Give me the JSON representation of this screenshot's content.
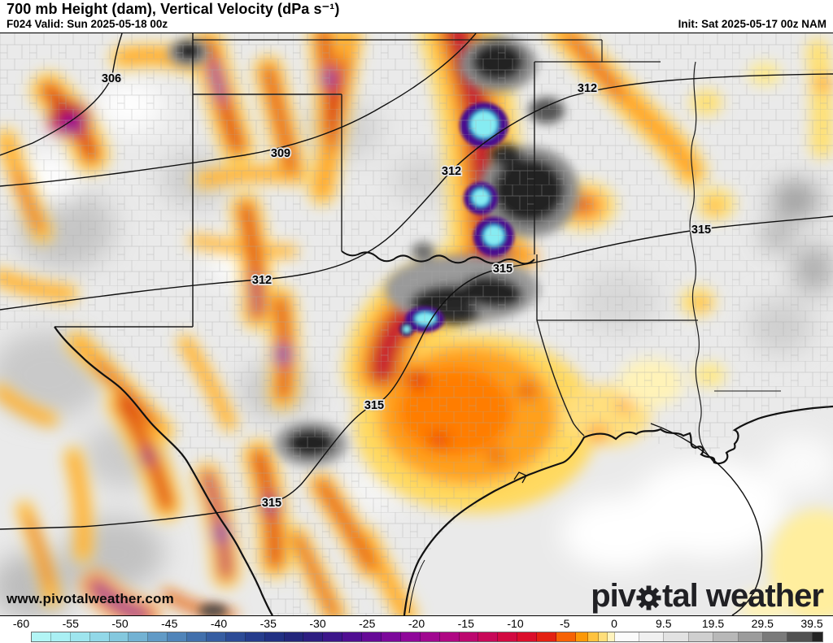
{
  "header": {
    "title": "700 mb Height (dam), Vertical Velocity (dPa s⁻¹)",
    "forecast_valid": "F024 Valid: Sun 2025-05-18 00z",
    "init_info": "Init: Sat 2025-05-17 00z NAM"
  },
  "map": {
    "contour_labels": [
      {
        "text": "306"
      },
      {
        "text": "309"
      },
      {
        "text": "312"
      },
      {
        "text": "312"
      },
      {
        "text": "312"
      },
      {
        "text": "315"
      },
      {
        "text": "315"
      },
      {
        "text": "315"
      },
      {
        "text": "315"
      }
    ],
    "watermark": "www.pivotalweather.com",
    "logo": {
      "part1": "piv",
      "part2": "tal weather"
    }
  },
  "colorbar": {
    "tick_labels": [
      "-60",
      "-55",
      "-50",
      "-45",
      "-40",
      "-35",
      "-30",
      "-25",
      "-20",
      "-15",
      "-10",
      "-5",
      "0",
      "9.5",
      "19.5",
      "29.5",
      "39.5"
    ],
    "cells": [
      [
        23.9,
        "#b2f5f5"
      ],
      [
        23.9,
        "#a9eff3"
      ],
      [
        23.9,
        "#9ee5ee"
      ],
      [
        23.9,
        "#92d8e8"
      ],
      [
        23.9,
        "#84c8de"
      ],
      [
        23.9,
        "#73b2d3"
      ],
      [
        23.9,
        "#619ac6"
      ],
      [
        23.9,
        "#5084b9"
      ],
      [
        23.9,
        "#4270ac"
      ],
      [
        23.9,
        "#365da1"
      ],
      [
        23.9,
        "#2c4b96"
      ],
      [
        23.9,
        "#253c8c"
      ],
      [
        23.9,
        "#213083"
      ],
      [
        23.9,
        "#23267b"
      ],
      [
        23.9,
        "#2d1e81"
      ],
      [
        23.9,
        "#3c168a"
      ],
      [
        23.9,
        "#500e92"
      ],
      [
        23.9,
        "#660a97"
      ],
      [
        23.9,
        "#7c099b"
      ],
      [
        23.9,
        "#8f089a"
      ],
      [
        23.9,
        "#a00890"
      ],
      [
        23.9,
        "#af0883"
      ],
      [
        23.9,
        "#bc086f"
      ],
      [
        23.9,
        "#c80959"
      ],
      [
        23.9,
        "#d20a41"
      ],
      [
        23.9,
        "#db0e2b"
      ],
      [
        23.9,
        "#e42112"
      ],
      [
        23.9,
        "#f66205"
      ],
      [
        15,
        "#fc9808"
      ],
      [
        13,
        "#ffc23e"
      ],
      [
        11,
        "#ffde7a"
      ],
      [
        8.7,
        "#fff3bd"
      ],
      [
        30.4,
        "#fbfbfb"
      ],
      [
        30.4,
        "#f0f0f0"
      ],
      [
        30.4,
        "#e2e2e2"
      ],
      [
        30.4,
        "#cfcfcf"
      ],
      [
        30.4,
        "#b8b8b8"
      ],
      [
        30.4,
        "#9c9c9c"
      ],
      [
        30.4,
        "#7a7a7a"
      ],
      [
        30.4,
        "#515151"
      ],
      [
        12,
        "#242424"
      ]
    ]
  }
}
